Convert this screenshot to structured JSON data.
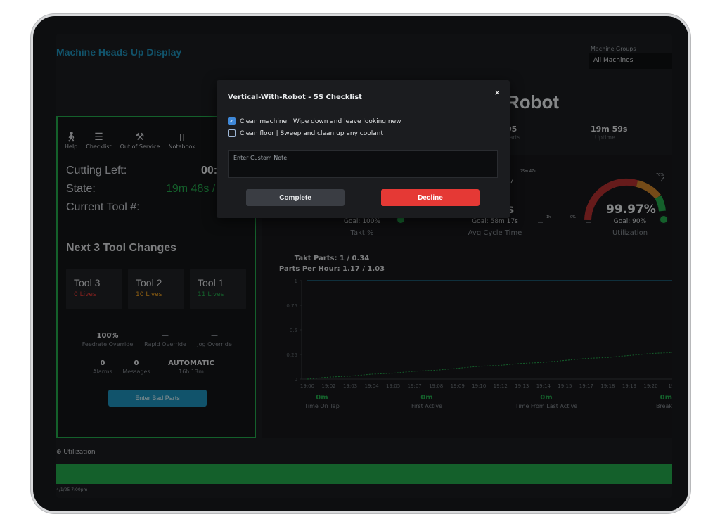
{
  "app": {
    "title": "Machine Heads Up Display"
  },
  "machine_groups": {
    "label": "Machine Groups",
    "selected": "All Machines"
  },
  "machine": {
    "name_visible": "Robot"
  },
  "toolbar": [
    {
      "label": "Help",
      "icon": "help-person-icon"
    },
    {
      "label": "Checklist",
      "icon": "checklist-icon"
    },
    {
      "label": "Out of Service",
      "icon": "tools-icon"
    },
    {
      "label": "Notebook",
      "icon": "notebook-icon"
    }
  ],
  "status": {
    "cutting_left_label": "Cutting Left:",
    "cutting_left_value": "00:",
    "state_label": "State:",
    "state_value": "19m 48s /",
    "current_tool_label": "Current Tool #:"
  },
  "tool_changes": {
    "title": "Next 3 Tool Changes",
    "tools": [
      {
        "name": "Tool 3",
        "lives": "0 Lives",
        "color": "#e53935"
      },
      {
        "name": "Tool 2",
        "lives": "10 Lives",
        "color": "#f0a020"
      },
      {
        "name": "Tool 1",
        "lives": "11 Lives",
        "color": "#23a64a"
      }
    ]
  },
  "overrides": [
    {
      "value": "100%",
      "label": "Feedrate Override"
    },
    {
      "value": "—",
      "label": "Rapid Override"
    },
    {
      "value": "—",
      "label": "Jog Override"
    }
  ],
  "alarms": [
    {
      "value": "0",
      "label": "Alarms"
    },
    {
      "value": "0",
      "label": "Messages"
    },
    {
      "value": "AUTOMATIC",
      "label": "16h 13m"
    }
  ],
  "enter_bad_parts_label": "Enter Bad Parts",
  "top_stats": [
    {
      "value": "05",
      "label": "Parts"
    },
    {
      "value": "19m 59s",
      "label": "Uptime"
    }
  ],
  "gauges": {
    "takt": {
      "goal": "Goal: 100%",
      "caption": "Takt %"
    },
    "avg_cycle": {
      "big": "s",
      "goal": "Goal: 58m 17s",
      "caption": "Avg Cycle Time",
      "tick_top": "75m 47s",
      "tick_right": "1h"
    },
    "utilization": {
      "big": "99.97%",
      "goal": "Goal: 90%",
      "caption": "Utilization",
      "tick_left": "0%",
      "tick_top": "70%",
      "value": 0.9997
    }
  },
  "takt_parts": "Takt Parts: 1 / 0.34",
  "parts_per_hour": "Parts Per Hour: 1.17 / 1.03",
  "chart_data": {
    "type": "line",
    "x": [
      "19:00",
      "19:02",
      "19:03",
      "19:04",
      "19:05",
      "19:07",
      "19:08",
      "19:09",
      "19:10",
      "19:12",
      "19:13",
      "19:14",
      "19:15",
      "19:17",
      "19:18",
      "19:19",
      "19:20",
      "19:"
    ],
    "ylim": [
      0,
      1
    ],
    "yticks": [
      "0",
      "0.25",
      "0.5",
      "0.75",
      "1"
    ],
    "series": [
      {
        "values": [
          1,
          1,
          1,
          1,
          1,
          1,
          1,
          1,
          1,
          1,
          1,
          1,
          1,
          1,
          1,
          1,
          1,
          1
        ],
        "style": "solid",
        "color": "#1e90b8"
      },
      {
        "values": [
          0.0,
          0.02,
          0.03,
          0.05,
          0.06,
          0.08,
          0.09,
          0.11,
          0.13,
          0.14,
          0.16,
          0.17,
          0.19,
          0.21,
          0.22,
          0.24,
          0.26,
          0.27
        ],
        "style": "dashed",
        "color": "#23a64a"
      }
    ]
  },
  "bottom_stats": [
    {
      "value": "0m",
      "label": "Time On Tap"
    },
    {
      "value": "0m",
      "label": "First Active"
    },
    {
      "value": "0m",
      "label": "Time From Last Active"
    },
    {
      "value": "0m",
      "label": "Break"
    }
  ],
  "utilization_bar": {
    "label": "Utilization",
    "date": "4/1/25 7:00pm"
  },
  "modal": {
    "title": "Vertical-With-Robot - 5S Checklist",
    "items": [
      {
        "text": "Clean machine | Wipe down and leave looking new",
        "checked": true
      },
      {
        "text": "Clean floor | Sweep and clean up any coolant",
        "checked": false
      }
    ],
    "note_placeholder": "Enter Custom Note",
    "complete_label": "Complete",
    "decline_label": "Decline",
    "close_glyph": "×"
  }
}
